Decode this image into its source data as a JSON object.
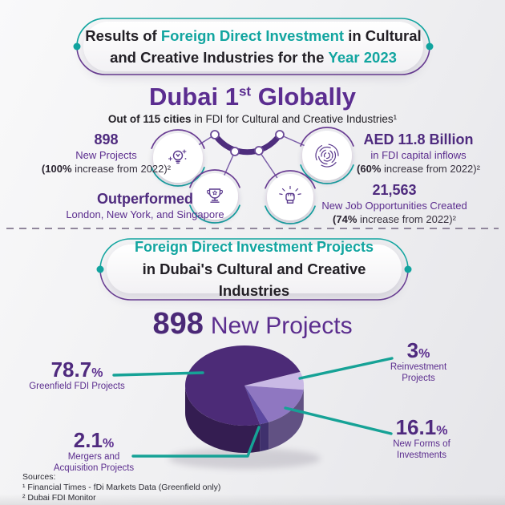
{
  "colors": {
    "teal": "#12A5A0",
    "purple": "#5B2D8E",
    "purple_dark": "#4B2977",
    "pie_shadow_purple": "#37205A",
    "line_teal": "#16A296",
    "text_dark": "#232026"
  },
  "banner1": {
    "t1": "Results of ",
    "t2": "Foreign Direct Investment",
    "t3": " in Cultural and Creative Industries for the ",
    "t4": "Year 2023"
  },
  "headline": {
    "t1": "Dubai 1",
    "sup": "st",
    "t2": " Globally",
    "sub_bold": "Out of 115 cities",
    "sub_rest": " in FDI for Cultural and Creative Industries¹"
  },
  "stats": {
    "projects": {
      "value": "898",
      "label": "New Projects",
      "note_bold": "(100%",
      "note_rest": " increase from 2022)²"
    },
    "capital": {
      "value": "AED 11.8 Billion",
      "label": "in FDI capital inflows",
      "note_bold": "(60%",
      "note_rest": " increase from 2022)²"
    },
    "outperformed": {
      "value": "Outperformed",
      "label": "London, New York, and Singapore"
    },
    "jobs": {
      "value": "21,563",
      "label": "New Job Opportunities Created",
      "note_bold": "(74%",
      "note_rest": " increase from 2022)²"
    }
  },
  "banner2": {
    "t1": "Foreign Direct Investment Projects",
    "t2": "in Dubai's Cultural and Creative Industries"
  },
  "pie_heading": {
    "number": "898",
    "rest": "New Projects"
  },
  "chart_data": {
    "type": "pie",
    "style": "3d",
    "title": "898 New Projects",
    "unit": "%",
    "slices": [
      {
        "label": "Greenfield FDI Projects",
        "value": 78.7,
        "color": "#4C2B77"
      },
      {
        "label": "Reinvestment Projects",
        "value": 3,
        "color": "#C9B9E5"
      },
      {
        "label": "New Forms of Investments",
        "value": 16.1,
        "color": "#8F77C1"
      },
      {
        "label": "Mergers and Acquisition Projects",
        "value": 2.1,
        "color": "#5C48A0"
      }
    ],
    "legend_position": "callouts"
  },
  "callouts": {
    "greenfield": {
      "value": "78.7",
      "pct": "%",
      "l1": "Greenfield FDI Projects",
      "l2": ""
    },
    "reinvestment": {
      "value": "3",
      "pct": "%",
      "l1": "Reinvestment",
      "l2": "Projects"
    },
    "mergers": {
      "value": "2.1",
      "pct": "%",
      "l1": "Mergers and",
      "l2": "Acquisition Projects"
    },
    "newforms": {
      "value": "16.1",
      "pct": "%",
      "l1": "New Forms of",
      "l2": "Investments"
    }
  },
  "icons": {
    "i1": "idea-lightbulb-icon",
    "i2": "fingerprint-icon",
    "i3": "trophy-icon",
    "i4": "innovation-fist-icon"
  },
  "sources": {
    "title": "Sources:",
    "line1": "¹ Financial Times - fDi Markets Data (Greenfield only)",
    "line2": "² Dubai FDI Monitor"
  }
}
